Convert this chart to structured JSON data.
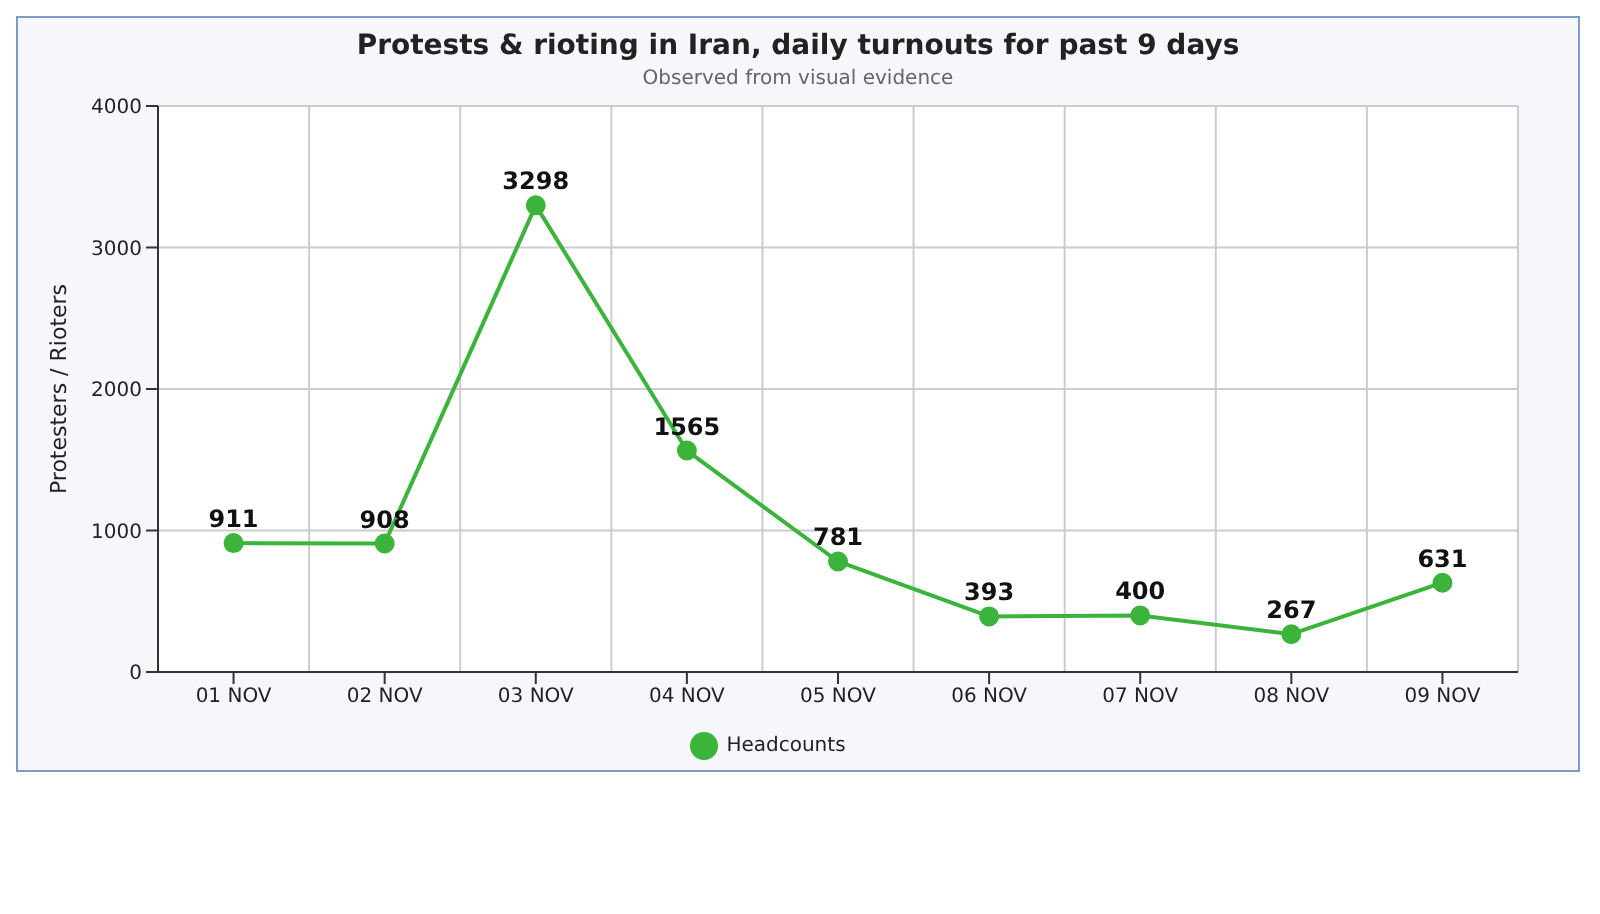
{
  "chart_data": {
    "type": "line",
    "title": "Protests & rioting in Iran, daily turnouts for past 9 days",
    "subtitle": "Observed from visual evidence",
    "ylabel": "Protesters / Rioters",
    "categories": [
      "01 NOV",
      "02 NOV",
      "03 NOV",
      "04 NOV",
      "05 NOV",
      "06 NOV",
      "07 NOV",
      "08 NOV",
      "09 NOV"
    ],
    "series": [
      {
        "name": "Headcounts",
        "color": "#3cb43c",
        "values": [
          911,
          908,
          3298,
          1565,
          781,
          393,
          400,
          267,
          631
        ]
      }
    ],
    "ylim": [
      0,
      4000
    ],
    "yticks": [
      0,
      1000,
      2000,
      3000,
      4000
    ],
    "grid": true,
    "legend": "bottom",
    "marker": "circle",
    "line_style": "solid",
    "data_labels": true
  }
}
